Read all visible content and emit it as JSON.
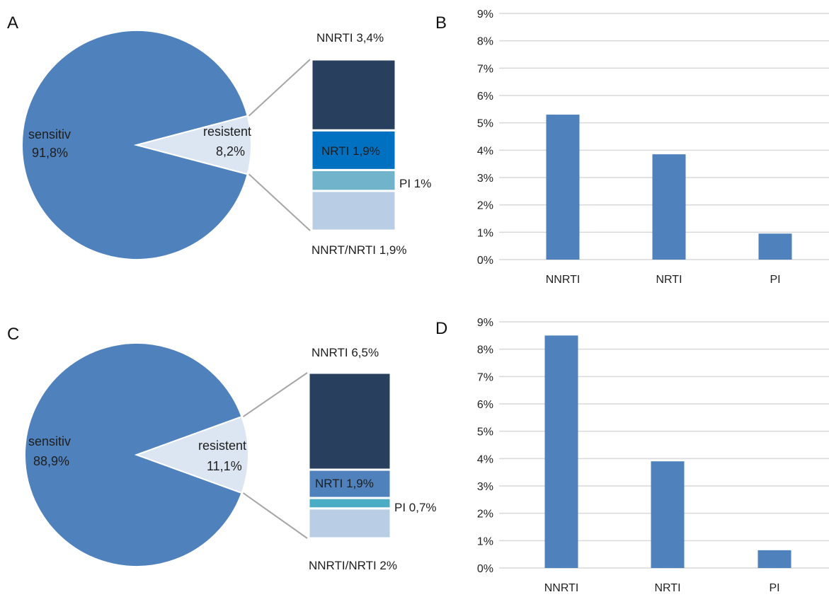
{
  "colors": {
    "sensitiv": "#4f81bd",
    "resistent": "#dce6f2",
    "bar": "#4f81bd",
    "grid": "#d9d9d9",
    "connector": "#a6a6a6",
    "nnrti_segment": "#283f5e",
    "nrti_segment_a": "#0070c0",
    "nrti_segment_c": "#4f81bd",
    "pi_segment_a": "#71b3cb",
    "pi_segment_c": "#4bacc6",
    "nnrt_nrti_segment": "#b9cde5"
  },
  "chart_data": [
    {
      "id": "A",
      "panel_letter": "A",
      "type": "pie",
      "slices": [
        {
          "key": "sensitiv",
          "label": "sensitiv",
          "value_label": "91,8%",
          "value": 91.8
        },
        {
          "key": "resistent",
          "label": "resistent",
          "value_label": "8,2%",
          "value": 8.2
        }
      ],
      "breakdown": [
        {
          "key": "nnrti",
          "label": "NNRTI 3,4%",
          "value": 3.4
        },
        {
          "key": "nrti",
          "label": "NRTI 1,9%",
          "value": 1.9
        },
        {
          "key": "pi",
          "label": "PI 1%",
          "value": 1.0
        },
        {
          "key": "nnrt_nrti",
          "label": "NNRT/NRTI 1,9%",
          "value": 1.9
        }
      ]
    },
    {
      "id": "B",
      "panel_letter": "B",
      "type": "bar",
      "categories": [
        "NNRTI",
        "NRTI",
        "PI"
      ],
      "values": [
        5.3,
        3.85,
        0.95
      ],
      "ylim": [
        0,
        9
      ],
      "yticks": [
        "0%",
        "1%",
        "2%",
        "3%",
        "4%",
        "5%",
        "6%",
        "7%",
        "8%",
        "9%"
      ],
      "grid": true
    },
    {
      "id": "C",
      "panel_letter": "C",
      "type": "pie",
      "slices": [
        {
          "key": "sensitiv",
          "label": "sensitiv",
          "value_label": "88,9%",
          "value": 88.9
        },
        {
          "key": "resistent",
          "label": "resistent",
          "value_label": "11,1%",
          "value": 11.1
        }
      ],
      "breakdown": [
        {
          "key": "nnrti",
          "label": "NNRTI 6,5%",
          "value": 6.5
        },
        {
          "key": "nrti",
          "label": "NRTI 1,9%",
          "value": 1.9
        },
        {
          "key": "pi",
          "label": "PI 0,7%",
          "value": 0.7
        },
        {
          "key": "nnrt_nrti",
          "label": "NNRTI/NRTI 2%",
          "value": 2.0
        }
      ]
    },
    {
      "id": "D",
      "panel_letter": "D",
      "type": "bar",
      "categories": [
        "NNRTI",
        "NRTI",
        "PI"
      ],
      "values": [
        8.5,
        3.9,
        0.65
      ],
      "ylim": [
        0,
        9
      ],
      "yticks": [
        "0%",
        "1%",
        "2%",
        "3%",
        "4%",
        "5%",
        "6%",
        "7%",
        "8%",
        "9%"
      ],
      "grid": true
    }
  ]
}
